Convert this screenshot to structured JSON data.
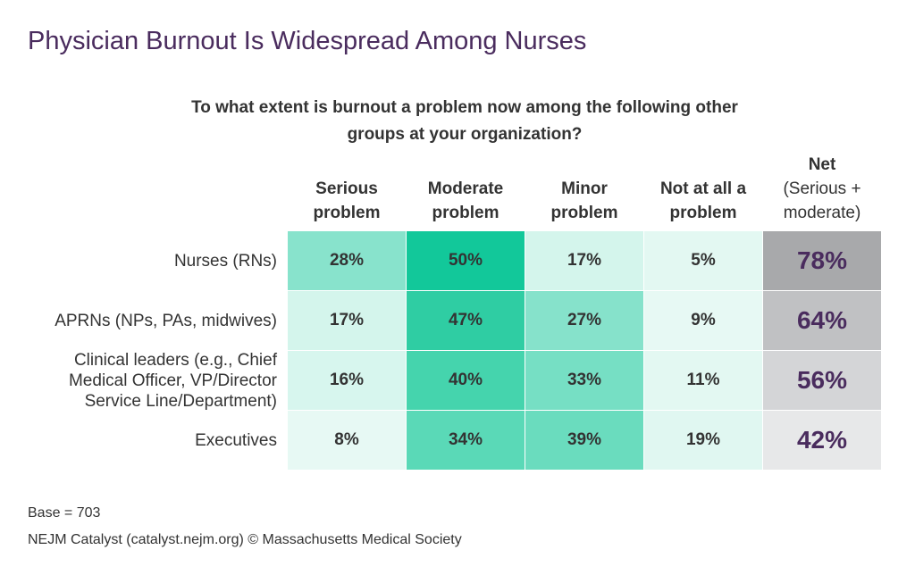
{
  "title": "Physician Burnout Is Widespread Among Nurses",
  "chart_data": {
    "type": "table",
    "question_line1": "To what extent is burnout a problem now among the following other",
    "question_line2": "groups at your organization?",
    "columns": [
      {
        "line1": "Serious",
        "line2": "problem"
      },
      {
        "line1": "Moderate",
        "line2": "problem"
      },
      {
        "line1": "Minor",
        "line2": "problem"
      },
      {
        "line1": "Not at all a",
        "line2": "problem"
      }
    ],
    "net_column": {
      "line1": "Net",
      "line2": "(Serious +",
      "line3": "moderate)"
    },
    "rows": [
      {
        "label_lines": [
          "Nurses (RNs)"
        ],
        "values": [
          "28%",
          "50%",
          "17%",
          "5%"
        ],
        "net": "78%"
      },
      {
        "label_lines": [
          "APRNs (NPs, PAs, midwives)"
        ],
        "values": [
          "17%",
          "47%",
          "27%",
          "9%"
        ],
        "net": "64%"
      },
      {
        "label_lines": [
          "Clinical leaders (e.g., Chief",
          "Medical Officer, VP/Director",
          "Service Line/Department)"
        ],
        "values": [
          "16%",
          "40%",
          "33%",
          "11%"
        ],
        "net": "56%"
      },
      {
        "label_lines": [
          "Executives"
        ],
        "values": [
          "8%",
          "34%",
          "39%",
          "19%"
        ],
        "net": "42%"
      }
    ],
    "cell_colors": [
      [
        "#88e3cc",
        "#12c89a",
        "#d4f5ec",
        "#e3f8f2"
      ],
      [
        "#d4f5ec",
        "#2fcda3",
        "#86e2cb",
        "#e7f9f4"
      ],
      [
        "#d7f6ee",
        "#45d4ad",
        "#76dfc4",
        "#e3f8f2"
      ],
      [
        "#e7f9f4",
        "#5ad9b7",
        "#6adcbe",
        "#e0f7f1"
      ]
    ],
    "net_colors": [
      "#a8a9ab",
      "#c0c1c3",
      "#d4d5d7",
      "#e7e8e9"
    ]
  },
  "footer": {
    "base": "Base = 703",
    "source": "NEJM Catalyst (catalyst.nejm.org) © Massachusetts Medical Society"
  }
}
